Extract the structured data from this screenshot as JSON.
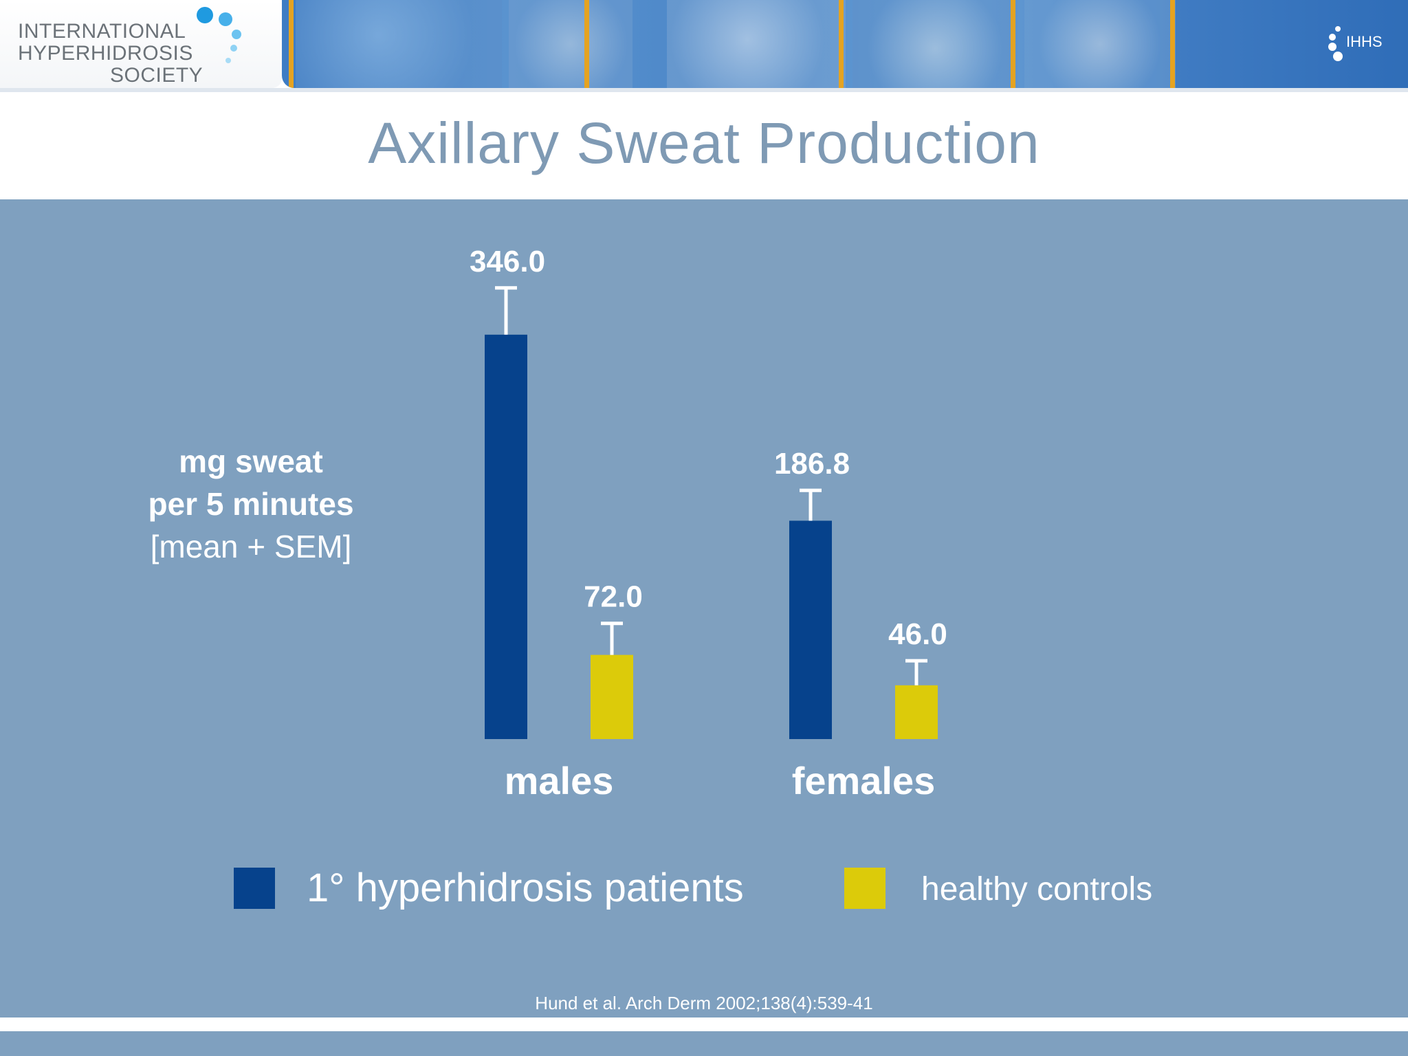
{
  "logo": {
    "line1": "INTERNATIONAL",
    "line2": "HYPERHIDROSIS",
    "line3": "SOCIETY",
    "mark_text": "IHHS"
  },
  "slide": {
    "title": "Axillary Sweat Production",
    "citation": "Hund et al. Arch Derm 2002;138(4):539-41"
  },
  "colors": {
    "panel": "#7fa0bf",
    "patients": "#06428c",
    "controls": "#dccb0a",
    "title": "#7f9ab4"
  },
  "chart_data": {
    "type": "bar",
    "title": "Axillary Sweat Production",
    "ylabel_lines": [
      "mg sweat",
      "per 5 minutes",
      "[mean + SEM]"
    ],
    "categories": [
      "males",
      "females"
    ],
    "series": [
      {
        "name": "1° hyperhidrosis patients",
        "values": [
          346.0,
          186.8
        ],
        "value_labels": [
          "346.0",
          "186.8"
        ],
        "sem": [
          40,
          26
        ]
      },
      {
        "name": "healthy controls",
        "values": [
          72.0,
          46.0
        ],
        "value_labels": [
          "72.0",
          "46.0"
        ],
        "sem": [
          27,
          21
        ]
      }
    ],
    "ylim": [
      0,
      420
    ],
    "grid": false,
    "legend_position": "bottom",
    "error_bars": "mean + SEM"
  }
}
